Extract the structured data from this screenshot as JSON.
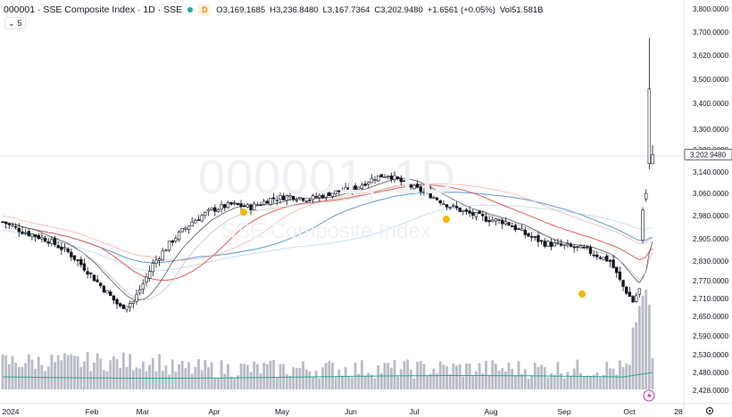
{
  "header": {
    "symbol_line": "000001 · SSE Composite Index · 1D · SSE",
    "badge": "D",
    "status_dot_color": "#26a69a",
    "ohlc": [
      {
        "k": "O",
        "v": "3,169.1685"
      },
      {
        "k": "H",
        "v": "3,236.8480"
      },
      {
        "k": "L",
        "v": "3,167.7364"
      },
      {
        "k": "C",
        "v": "3,202.9480"
      },
      {
        "k": "",
        "v": "+1.6561 (+0.05%)"
      },
      {
        "k": "Vol",
        "v": "51.581B"
      }
    ]
  },
  "indicator_tag": "5",
  "watermark": {
    "main": "000001, 1D",
    "sub": "SSE Composite Index"
  },
  "chart_data": {
    "type": "candlestick",
    "title": "000001 · SSE Composite Index · 1D · SSE",
    "y_ticks": [
      "3,800.0000",
      "3,700.0000",
      "3,620.0000",
      "3,500.0000",
      "3,400.0000",
      "3,300.0000",
      "3,220.0000",
      "3,140.0000",
      "3,060.0000",
      "2,980.0000",
      "2,905.0000",
      "2,830.0000",
      "2,770.0000",
      "2,710.0000",
      "2,650.0000",
      "2,590.0000",
      "2,530.0000",
      "2,480.0000",
      "2,428.0000"
    ],
    "price_label": "3,202.9480",
    "x_ticks": [
      "2024",
      "Feb",
      "Mar",
      "Apr",
      "May",
      "Jun",
      "Jul",
      "Aug",
      "Sep",
      "Oct",
      "28"
    ],
    "ylim": [
      2428,
      3800
    ],
    "markers": [
      {
        "date": "Apr",
        "price": 2992,
        "color": "#f5b800"
      },
      {
        "date": "Jul",
        "price": 2968,
        "color": "#f5b800"
      },
      {
        "date": "Sep",
        "price": 2725,
        "color": "#f5b800"
      }
    ],
    "series": [
      {
        "name": "",
        "color": "#5b9bd5"
      },
      {
        "name": "",
        "color": "#e0605a"
      },
      {
        "name": "",
        "color": "#555555"
      }
    ],
    "volume_ma_color": "#26a69a",
    "volume_color": "#b9bcc6"
  }
}
